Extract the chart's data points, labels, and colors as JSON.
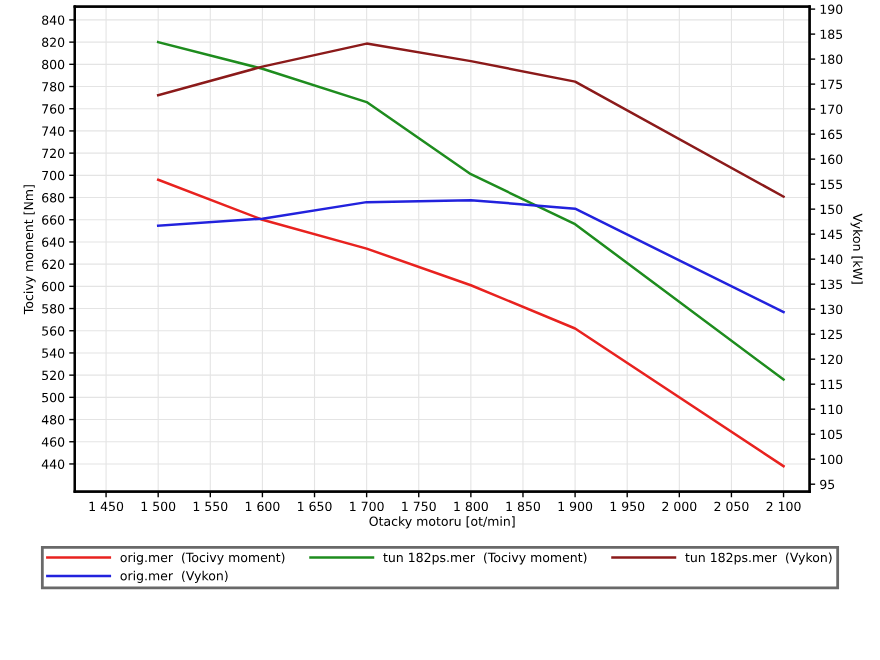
{
  "chart_data": {
    "type": "line",
    "xlabel": "Otacky motoru [ot/min]",
    "ylabel": "Tocivy moment [Nm]",
    "y2label": "Vykon [kW]",
    "x": [
      1500,
      1600,
      1700,
      1800,
      1900,
      2100
    ],
    "series": [
      {
        "name": "orig.mer  (Tocivy moment)",
        "color": "#e8221f",
        "values": [
          696,
          660,
          634,
          601,
          562,
          438
        ]
      },
      {
        "name": "orig.mer  (Vykon)",
        "color": "#2222dd",
        "axis": "y2",
        "values": [
          146.7,
          148.1,
          151.4,
          151.8,
          150.1,
          129.4
        ]
      },
      {
        "name": "tun 182ps.mer  (Tocivy moment)",
        "color": "#1e8c1e",
        "values": [
          820,
          796,
          766,
          701,
          656,
          516
        ]
      },
      {
        "name": "tun 182ps.mer  (Vykon)",
        "color": "#8b1a1a",
        "axis": "y2",
        "values": [
          172.8,
          178.5,
          183.1,
          179.6,
          175.5,
          152.5
        ]
      }
    ],
    "xlim": [
      1420,
      2125
    ],
    "xticks": [
      {
        "value": 1450,
        "label": "1 450"
      },
      {
        "value": 1500,
        "label": "1 500"
      },
      {
        "value": 1550,
        "label": "1 550"
      },
      {
        "value": 1600,
        "label": "1 600"
      },
      {
        "value": 1650,
        "label": "1 650"
      },
      {
        "value": 1700,
        "label": "1 700"
      },
      {
        "value": 1750,
        "label": "1 750"
      },
      {
        "value": 1800,
        "label": "1 800"
      },
      {
        "value": 1850,
        "label": "1 850"
      },
      {
        "value": 1900,
        "label": "1 900"
      },
      {
        "value": 1950,
        "label": "1 950"
      },
      {
        "value": 2000,
        "label": "2 000"
      },
      {
        "value": 2050,
        "label": "2 050"
      },
      {
        "value": 2100,
        "label": "2 100"
      }
    ],
    "ylim": [
      415,
      852
    ],
    "yticks": [
      440,
      460,
      480,
      500,
      520,
      540,
      560,
      580,
      600,
      620,
      640,
      660,
      680,
      700,
      720,
      740,
      760,
      780,
      800,
      820,
      840
    ],
    "y2lim": [
      93.5,
      190.5
    ],
    "y2ticks": [
      95,
      100,
      105,
      110,
      115,
      120,
      125,
      130,
      135,
      140,
      145,
      150,
      155,
      160,
      165,
      170,
      175,
      180,
      185,
      190
    ],
    "grid": true,
    "legend": "bottom",
    "line_style": "solid",
    "marker": "none"
  }
}
